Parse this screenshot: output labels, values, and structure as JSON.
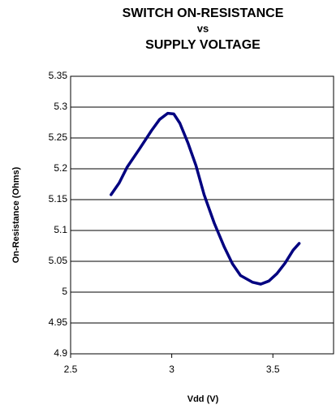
{
  "chart_data": {
    "type": "line",
    "title": [
      "SWITCH ON-RESISTANCE",
      "vs",
      "SUPPLY VOLTAGE"
    ],
    "xlabel": "Vdd (V)",
    "ylabel": "On-Resistance (Ohms)",
    "x": [
      2.7,
      2.74,
      2.78,
      2.84,
      2.9,
      2.94,
      2.98,
      3.01,
      3.04,
      3.08,
      3.12,
      3.16,
      3.21,
      3.26,
      3.3,
      3.34,
      3.4,
      3.44,
      3.48,
      3.52,
      3.56,
      3.6,
      3.63
    ],
    "series": [
      {
        "color": "#000080",
        "values": [
          5.158,
          5.177,
          5.203,
          5.232,
          5.262,
          5.28,
          5.29,
          5.289,
          5.274,
          5.242,
          5.205,
          5.158,
          5.112,
          5.073,
          5.046,
          5.027,
          5.016,
          5.013,
          5.018,
          5.03,
          5.047,
          5.068,
          5.079
        ]
      }
    ],
    "xlim": [
      2.5,
      3.8
    ],
    "xticks": [
      2.5,
      3,
      3.5
    ],
    "ylim": [
      4.9,
      5.35
    ],
    "yticks": [
      4.9,
      4.95,
      5,
      5.05,
      5.1,
      5.15,
      5.2,
      5.25,
      5.3,
      5.35
    ],
    "grid": true
  }
}
